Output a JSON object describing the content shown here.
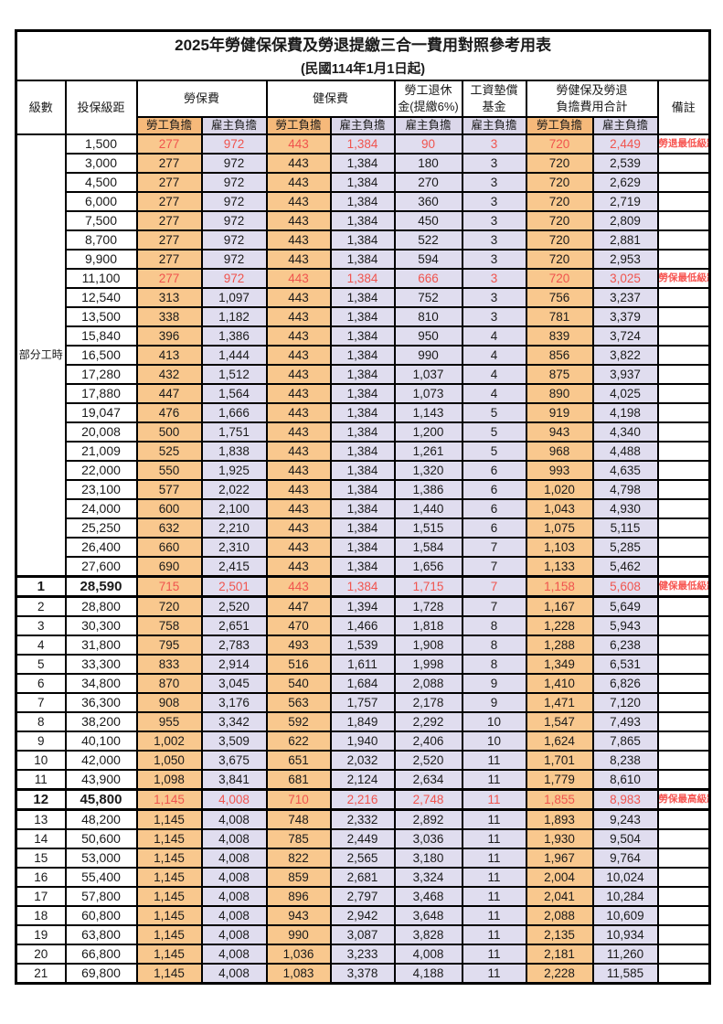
{
  "title": "2025年勞健保保費及勞退提繳三合一費用對照參考用表",
  "subtitle": "(民國114年1月1日起)",
  "columns": {
    "level": "級數",
    "bracket": "投保級距",
    "labor_fee": "勞保費",
    "health_fee": "健保費",
    "pension_line1": "勞工退休",
    "pension_line2": "金(提繳6%)",
    "wage_fund_line1": "工資墊償",
    "wage_fund_line2": "基金",
    "total_line1": "勞健保及勞退",
    "total_line2": "負擔費用合計",
    "note": "備註",
    "employee_burden": "勞工負擔",
    "employer_burden": "雇主負擔"
  },
  "part_time_label": "部分工時",
  "part_time_rowspan": 23,
  "colors": {
    "employee_header": "#f6b97a",
    "employee_cell": "#f9c88e",
    "employer_header": "#dbd7ea",
    "employer_cell": "#e0ddef",
    "highlight_red": "#f0544e",
    "note_red": "#f75551",
    "border": "#000000"
  },
  "rows": [
    {
      "level": "",
      "bracket": "1,500",
      "values": [
        "277",
        "972",
        "443",
        "1,384",
        "90",
        "3",
        "720",
        "2,449"
      ],
      "note": "勞退最低級距",
      "red": true,
      "bold": false,
      "thick": false
    },
    {
      "level": "",
      "bracket": "3,000",
      "values": [
        "277",
        "972",
        "443",
        "1,384",
        "180",
        "3",
        "720",
        "2,539"
      ],
      "note": "",
      "red": false,
      "bold": false,
      "thick": false
    },
    {
      "level": "",
      "bracket": "4,500",
      "values": [
        "277",
        "972",
        "443",
        "1,384",
        "270",
        "3",
        "720",
        "2,629"
      ],
      "note": "",
      "red": false,
      "bold": false,
      "thick": false
    },
    {
      "level": "",
      "bracket": "6,000",
      "values": [
        "277",
        "972",
        "443",
        "1,384",
        "360",
        "3",
        "720",
        "2,719"
      ],
      "note": "",
      "red": false,
      "bold": false,
      "thick": false
    },
    {
      "level": "",
      "bracket": "7,500",
      "values": [
        "277",
        "972",
        "443",
        "1,384",
        "450",
        "3",
        "720",
        "2,809"
      ],
      "note": "",
      "red": false,
      "bold": false,
      "thick": false
    },
    {
      "level": "",
      "bracket": "8,700",
      "values": [
        "277",
        "972",
        "443",
        "1,384",
        "522",
        "3",
        "720",
        "2,881"
      ],
      "note": "",
      "red": false,
      "bold": false,
      "thick": false
    },
    {
      "level": "",
      "bracket": "9,900",
      "values": [
        "277",
        "972",
        "443",
        "1,384",
        "594",
        "3",
        "720",
        "2,953"
      ],
      "note": "",
      "red": false,
      "bold": false,
      "thick": false
    },
    {
      "level": "",
      "bracket": "11,100",
      "values": [
        "277",
        "972",
        "443",
        "1,384",
        "666",
        "3",
        "720",
        "3,025"
      ],
      "note": "勞保最低級距",
      "red": true,
      "bold": false,
      "thick": false
    },
    {
      "level": "",
      "bracket": "12,540",
      "values": [
        "313",
        "1,097",
        "443",
        "1,384",
        "752",
        "3",
        "756",
        "3,237"
      ],
      "note": "",
      "red": false,
      "bold": false,
      "thick": false
    },
    {
      "level": "",
      "bracket": "13,500",
      "values": [
        "338",
        "1,182",
        "443",
        "1,384",
        "810",
        "3",
        "781",
        "3,379"
      ],
      "note": "",
      "red": false,
      "bold": false,
      "thick": false
    },
    {
      "level": "",
      "bracket": "15,840",
      "values": [
        "396",
        "1,386",
        "443",
        "1,384",
        "950",
        "4",
        "839",
        "3,724"
      ],
      "note": "",
      "red": false,
      "bold": false,
      "thick": false
    },
    {
      "level": "",
      "bracket": "16,500",
      "values": [
        "413",
        "1,444",
        "443",
        "1,384",
        "990",
        "4",
        "856",
        "3,822"
      ],
      "note": "",
      "red": false,
      "bold": false,
      "thick": false
    },
    {
      "level": "",
      "bracket": "17,280",
      "values": [
        "432",
        "1,512",
        "443",
        "1,384",
        "1,037",
        "4",
        "875",
        "3,937"
      ],
      "note": "",
      "red": false,
      "bold": false,
      "thick": false
    },
    {
      "level": "",
      "bracket": "17,880",
      "values": [
        "447",
        "1,564",
        "443",
        "1,384",
        "1,073",
        "4",
        "890",
        "4,025"
      ],
      "note": "",
      "red": false,
      "bold": false,
      "thick": false
    },
    {
      "level": "",
      "bracket": "19,047",
      "values": [
        "476",
        "1,666",
        "443",
        "1,384",
        "1,143",
        "5",
        "919",
        "4,198"
      ],
      "note": "",
      "red": false,
      "bold": false,
      "thick": false
    },
    {
      "level": "",
      "bracket": "20,008",
      "values": [
        "500",
        "1,751",
        "443",
        "1,384",
        "1,200",
        "5",
        "943",
        "4,340"
      ],
      "note": "",
      "red": false,
      "bold": false,
      "thick": false
    },
    {
      "level": "",
      "bracket": "21,009",
      "values": [
        "525",
        "1,838",
        "443",
        "1,384",
        "1,261",
        "5",
        "968",
        "4,488"
      ],
      "note": "",
      "red": false,
      "bold": false,
      "thick": false
    },
    {
      "level": "",
      "bracket": "22,000",
      "values": [
        "550",
        "1,925",
        "443",
        "1,384",
        "1,320",
        "6",
        "993",
        "4,635"
      ],
      "note": "",
      "red": false,
      "bold": false,
      "thick": false
    },
    {
      "level": "",
      "bracket": "23,100",
      "values": [
        "577",
        "2,022",
        "443",
        "1,384",
        "1,386",
        "6",
        "1,020",
        "4,798"
      ],
      "note": "",
      "red": false,
      "bold": false,
      "thick": false
    },
    {
      "level": "",
      "bracket": "24,000",
      "values": [
        "600",
        "2,100",
        "443",
        "1,384",
        "1,440",
        "6",
        "1,043",
        "4,930"
      ],
      "note": "",
      "red": false,
      "bold": false,
      "thick": false
    },
    {
      "level": "",
      "bracket": "25,250",
      "values": [
        "632",
        "2,210",
        "443",
        "1,384",
        "1,515",
        "6",
        "1,075",
        "5,115"
      ],
      "note": "",
      "red": false,
      "bold": false,
      "thick": false
    },
    {
      "level": "",
      "bracket": "26,400",
      "values": [
        "660",
        "2,310",
        "443",
        "1,384",
        "1,584",
        "7",
        "1,103",
        "5,285"
      ],
      "note": "",
      "red": false,
      "bold": false,
      "thick": false
    },
    {
      "level": "",
      "bracket": "27,600",
      "values": [
        "690",
        "2,415",
        "443",
        "1,384",
        "1,656",
        "7",
        "1,133",
        "5,462"
      ],
      "note": "",
      "red": false,
      "bold": false,
      "thick": false
    },
    {
      "level": "1",
      "bracket": "28,590",
      "values": [
        "715",
        "2,501",
        "443",
        "1,384",
        "1,715",
        "7",
        "1,158",
        "5,608"
      ],
      "note": "健保最低級距",
      "red": true,
      "bold": true,
      "thick": true
    },
    {
      "level": "2",
      "bracket": "28,800",
      "values": [
        "720",
        "2,520",
        "447",
        "1,394",
        "1,728",
        "7",
        "1,167",
        "5,649"
      ],
      "note": "",
      "red": false,
      "bold": false,
      "thick": false
    },
    {
      "level": "3",
      "bracket": "30,300",
      "values": [
        "758",
        "2,651",
        "470",
        "1,466",
        "1,818",
        "8",
        "1,228",
        "5,943"
      ],
      "note": "",
      "red": false,
      "bold": false,
      "thick": false
    },
    {
      "level": "4",
      "bracket": "31,800",
      "values": [
        "795",
        "2,783",
        "493",
        "1,539",
        "1,908",
        "8",
        "1,288",
        "6,238"
      ],
      "note": "",
      "red": false,
      "bold": false,
      "thick": false
    },
    {
      "level": "5",
      "bracket": "33,300",
      "values": [
        "833",
        "2,914",
        "516",
        "1,611",
        "1,998",
        "8",
        "1,349",
        "6,531"
      ],
      "note": "",
      "red": false,
      "bold": false,
      "thick": false
    },
    {
      "level": "6",
      "bracket": "34,800",
      "values": [
        "870",
        "3,045",
        "540",
        "1,684",
        "2,088",
        "9",
        "1,410",
        "6,826"
      ],
      "note": "",
      "red": false,
      "bold": false,
      "thick": false
    },
    {
      "level": "7",
      "bracket": "36,300",
      "values": [
        "908",
        "3,176",
        "563",
        "1,757",
        "2,178",
        "9",
        "1,471",
        "7,120"
      ],
      "note": "",
      "red": false,
      "bold": false,
      "thick": false
    },
    {
      "level": "8",
      "bracket": "38,200",
      "values": [
        "955",
        "3,342",
        "592",
        "1,849",
        "2,292",
        "10",
        "1,547",
        "7,493"
      ],
      "note": "",
      "red": false,
      "bold": false,
      "thick": false
    },
    {
      "level": "9",
      "bracket": "40,100",
      "values": [
        "1,002",
        "3,509",
        "622",
        "1,940",
        "2,406",
        "10",
        "1,624",
        "7,865"
      ],
      "note": "",
      "red": false,
      "bold": false,
      "thick": false
    },
    {
      "level": "10",
      "bracket": "42,000",
      "values": [
        "1,050",
        "3,675",
        "651",
        "2,032",
        "2,520",
        "11",
        "1,701",
        "8,238"
      ],
      "note": "",
      "red": false,
      "bold": false,
      "thick": false
    },
    {
      "level": "11",
      "bracket": "43,900",
      "values": [
        "1,098",
        "3,841",
        "681",
        "2,124",
        "2,634",
        "11",
        "1,779",
        "8,610"
      ],
      "note": "",
      "red": false,
      "bold": false,
      "thick": false
    },
    {
      "level": "12",
      "bracket": "45,800",
      "values": [
        "1,145",
        "4,008",
        "710",
        "2,216",
        "2,748",
        "11",
        "1,855",
        "8,983"
      ],
      "note": "勞保最高級距",
      "red": true,
      "bold": true,
      "thick": true
    },
    {
      "level": "13",
      "bracket": "48,200",
      "values": [
        "1,145",
        "4,008",
        "748",
        "2,332",
        "2,892",
        "11",
        "1,893",
        "9,243"
      ],
      "note": "",
      "red": false,
      "bold": false,
      "thick": false
    },
    {
      "level": "14",
      "bracket": "50,600",
      "values": [
        "1,145",
        "4,008",
        "785",
        "2,449",
        "3,036",
        "11",
        "1,930",
        "9,504"
      ],
      "note": "",
      "red": false,
      "bold": false,
      "thick": false
    },
    {
      "level": "15",
      "bracket": "53,000",
      "values": [
        "1,145",
        "4,008",
        "822",
        "2,565",
        "3,180",
        "11",
        "1,967",
        "9,764"
      ],
      "note": "",
      "red": false,
      "bold": false,
      "thick": false
    },
    {
      "level": "16",
      "bracket": "55,400",
      "values": [
        "1,145",
        "4,008",
        "859",
        "2,681",
        "3,324",
        "11",
        "2,004",
        "10,024"
      ],
      "note": "",
      "red": false,
      "bold": false,
      "thick": false
    },
    {
      "level": "17",
      "bracket": "57,800",
      "values": [
        "1,145",
        "4,008",
        "896",
        "2,797",
        "3,468",
        "11",
        "2,041",
        "10,284"
      ],
      "note": "",
      "red": false,
      "bold": false,
      "thick": false
    },
    {
      "level": "18",
      "bracket": "60,800",
      "values": [
        "1,145",
        "4,008",
        "943",
        "2,942",
        "3,648",
        "11",
        "2,088",
        "10,609"
      ],
      "note": "",
      "red": false,
      "bold": false,
      "thick": false
    },
    {
      "level": "19",
      "bracket": "63,800",
      "values": [
        "1,145",
        "4,008",
        "990",
        "3,087",
        "3,828",
        "11",
        "2,135",
        "10,934"
      ],
      "note": "",
      "red": false,
      "bold": false,
      "thick": false
    },
    {
      "level": "20",
      "bracket": "66,800",
      "values": [
        "1,145",
        "4,008",
        "1,036",
        "3,233",
        "4,008",
        "11",
        "2,181",
        "11,260"
      ],
      "note": "",
      "red": false,
      "bold": false,
      "thick": false
    },
    {
      "level": "21",
      "bracket": "69,800",
      "values": [
        "1,145",
        "4,008",
        "1,083",
        "3,378",
        "4,188",
        "11",
        "2,228",
        "11,585"
      ],
      "note": "",
      "red": false,
      "bold": false,
      "thick": false
    }
  ]
}
